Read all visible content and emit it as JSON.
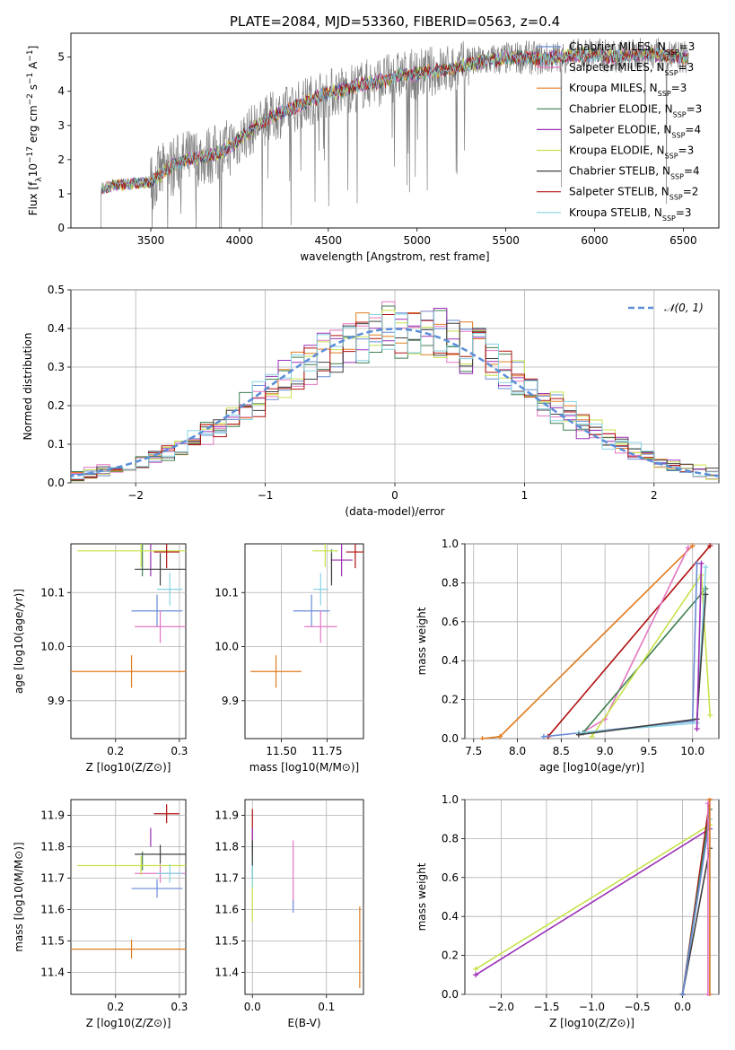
{
  "figure": {
    "title": "PLATE=2084, MJD=53360, FIBERID=0563, z=0.4"
  },
  "colors": {
    "Chabrier MILES": "#6a8bd6",
    "Salpeter MILES": "#e377c2",
    "Kroupa MILES": "#e07b20",
    "Chabrier ELODIE": "#3f7f4f",
    "Salpeter ELODIE": "#9b30b5",
    "Kroupa ELODIE": "#c7e24a",
    "Chabrier STELIB": "#404040",
    "Salpeter STELIB": "#b01010",
    "Kroupa STELIB": "#86d3e3",
    "data": "#808080",
    "normal": "#5b8ed8",
    "grid": "#b0b0b0"
  },
  "chart_data": [
    {
      "id": "spectrum",
      "type": "line",
      "xlabel": "wavelength [Angstrom, rest frame]",
      "ylabel": "Flux [f_λ 10^-17 erg cm^-2 s^-1 A^-1]",
      "xlim": [
        3050,
        6700
      ],
      "ylim": [
        0,
        5.7
      ],
      "xticks": [
        3500,
        4000,
        4500,
        5000,
        5500,
        6000,
        6500
      ],
      "yticks": [
        0,
        1,
        2,
        3,
        4,
        5
      ],
      "grid": false,
      "legend_position": "upper right",
      "legend": [
        {
          "label": "Chabrier MILES, N",
          "sub": "SSP",
          "suffix": "=3"
        },
        {
          "label": "Salpeter MILES, N",
          "sub": "SSP",
          "suffix": "=3"
        },
        {
          "label": "Kroupa MILES, N",
          "sub": "SSP",
          "suffix": "=3"
        },
        {
          "label": "Chabrier ELODIE, N",
          "sub": "SSP",
          "suffix": "=3"
        },
        {
          "label": "Salpeter ELODIE, N",
          "sub": "SSP",
          "suffix": "=4"
        },
        {
          "label": "Kroupa ELODIE, N",
          "sub": "SSP",
          "suffix": "=3"
        },
        {
          "label": "Chabrier STELIB, N",
          "sub": "SSP",
          "suffix": "=4"
        },
        {
          "label": "Salpeter STELIB, N",
          "sub": "SSP",
          "suffix": "=2"
        },
        {
          "label": "Kroupa STELIB, N",
          "sub": "SSP",
          "suffix": "=3"
        }
      ],
      "model_trend": {
        "x": [
          3220,
          3300,
          3400,
          3500,
          3600,
          3700,
          3800,
          3900,
          4000,
          4100,
          4200,
          4300,
          4400,
          4500,
          4600,
          4700,
          4800,
          4900,
          5000,
          5100,
          5200,
          5300,
          5400,
          5500,
          5600,
          5700,
          5800,
          5900,
          6000,
          6100,
          6200,
          6300,
          6400,
          6500
        ],
        "y": [
          1.15,
          1.25,
          1.3,
          1.35,
          1.75,
          2.0,
          2.1,
          2.2,
          2.6,
          3.0,
          3.3,
          3.5,
          3.75,
          3.95,
          4.05,
          4.2,
          4.3,
          4.45,
          4.5,
          4.6,
          4.65,
          4.8,
          4.9,
          4.95,
          5.0,
          4.95,
          5.0,
          5.05,
          5.1,
          5.0,
          5.05,
          5.1,
          5.05,
          5.0
        ]
      },
      "data_range": [
        3220,
        6530
      ]
    },
    {
      "id": "residuals",
      "type": "histogram",
      "xlabel": "(data-model)/error",
      "ylabel": "Normed distribution",
      "xlim": [
        -2.5,
        2.5
      ],
      "ylim": [
        0,
        0.5
      ],
      "xticks": [
        -2,
        -1,
        0,
        1,
        2
      ],
      "yticks": [
        0.0,
        0.1,
        0.2,
        0.3,
        0.4,
        0.5
      ],
      "grid": true,
      "legend_position": "upper right",
      "legend_label": "𝒩(0, 1)",
      "bin_width": 0.1,
      "bin_start": -2.5
    },
    {
      "id": "age-vs-Z",
      "type": "errorbar",
      "xlabel": "Z [log10(Z/Z⊙)]",
      "ylabel": "age [log10(age/yr)]",
      "xlim": [
        0.13,
        0.31
      ],
      "ylim": [
        9.83,
        10.19
      ],
      "xticks": [
        0.2,
        0.3
      ],
      "yticks": [
        9.9,
        10.0,
        10.1
      ],
      "grid": true,
      "points": [
        {
          "model": "Chabrier MILES",
          "x": 0.265,
          "xerr": 0.04,
          "y": 10.066
        },
        {
          "model": "Salpeter MILES",
          "x": 0.27,
          "xerr": 0.04,
          "y": 10.037
        },
        {
          "model": "Kroupa MILES",
          "x": 0.225,
          "xerr": 0.1,
          "y": 9.954
        },
        {
          "model": "Chabrier ELODIE",
          "x": 0.242,
          "xerr": 0.0,
          "y": 10.16
        },
        {
          "model": "Salpeter ELODIE",
          "x": 0.255,
          "xerr": 0.0,
          "y": 10.16
        },
        {
          "model": "Kroupa ELODIE",
          "x": 0.24,
          "xerr": 0.1,
          "y": 10.177
        },
        {
          "model": "Chabrier STELIB",
          "x": 0.27,
          "xerr": 0.04,
          "y": 10.143
        },
        {
          "model": "Salpeter STELIB",
          "x": 0.28,
          "xerr": 0.02,
          "y": 10.175
        },
        {
          "model": "Kroupa STELIB",
          "x": 0.285,
          "xerr": 0.02,
          "y": 10.106
        }
      ]
    },
    {
      "id": "age-vs-mass",
      "type": "errorbar",
      "xlabel": "mass [log10(M/M⊙)]",
      "ylabel": "",
      "xlim": [
        11.3,
        11.95
      ],
      "ylim": [
        9.83,
        10.19
      ],
      "xticks": [
        11.5,
        11.75
      ],
      "yticks": [
        9.9,
        10.0,
        10.1
      ],
      "grid": true,
      "points": [
        {
          "model": "Chabrier MILES",
          "x": 11.665,
          "xerr": 0.1,
          "y": 10.066
        },
        {
          "model": "Salpeter MILES",
          "x": 11.715,
          "xerr": 0.09,
          "y": 10.037
        },
        {
          "model": "Kroupa MILES",
          "x": 11.47,
          "xerr": 0.14,
          "y": 9.954
        },
        {
          "model": "Chabrier ELODIE",
          "x": 11.775,
          "xerr": 0.0,
          "y": 10.15
        },
        {
          "model": "Salpeter ELODIE",
          "x": 11.83,
          "xerr": 0.06,
          "y": 10.16
        },
        {
          "model": "Kroupa ELODIE",
          "x": 11.74,
          "xerr": 0.07,
          "y": 10.177
        },
        {
          "model": "Chabrier STELIB",
          "x": 11.775,
          "xerr": 0.0,
          "y": 10.143
        },
        {
          "model": "Salpeter STELIB",
          "x": 11.905,
          "xerr": 0.05,
          "y": 10.175
        },
        {
          "model": "Kroupa STELIB",
          "x": 11.715,
          "xerr": 0.04,
          "y": 10.106
        }
      ]
    },
    {
      "id": "massweight-vs-age",
      "type": "line",
      "xlabel": "age [log10(age/yr)]",
      "ylabel": "mass weight",
      "xlim": [
        7.4,
        10.3
      ],
      "ylim": [
        0,
        1.0
      ],
      "xticks": [
        7.5,
        8.0,
        8.5,
        9.0,
        9.5,
        10.0
      ],
      "yticks": [
        0.0,
        0.2,
        0.4,
        0.6,
        0.8,
        1.0
      ],
      "grid": true,
      "series": [
        {
          "model": "Kroupa MILES",
          "x": [
            7.6,
            7.8,
            10.0
          ],
          "y": [
            0.0,
            0.01,
            0.99
          ]
        },
        {
          "model": "Salpeter STELIB",
          "x": [
            8.35,
            10.2
          ],
          "y": [
            0.01,
            0.99
          ]
        },
        {
          "model": "Salpeter MILES",
          "x": [
            8.7,
            9.0,
            9.95
          ],
          "y": [
            0.02,
            0.1,
            0.98
          ]
        },
        {
          "model": "Chabrier ELODIE",
          "x": [
            8.75,
            10.15
          ],
          "y": [
            0.03,
            0.77
          ]
        },
        {
          "model": "Kroupa ELODIE",
          "x": [
            8.85,
            10.1,
            10.2
          ],
          "y": [
            0.01,
            0.84,
            0.12
          ]
        },
        {
          "model": "Chabrier MILES",
          "x": [
            8.3,
            10.0,
            10.05
          ],
          "y": [
            0.01,
            0.09,
            0.9
          ]
        },
        {
          "model": "Kroupa STELIB",
          "x": [
            8.7,
            10.05,
            10.15
          ],
          "y": [
            0.03,
            0.08,
            0.88
          ]
        },
        {
          "model": "Chabrier STELIB",
          "x": [
            8.7,
            10.05,
            10.15
          ],
          "y": [
            0.02,
            0.1,
            0.74
          ]
        },
        {
          "model": "Salpeter ELODIE",
          "x": [
            10.05,
            10.1
          ],
          "y": [
            0.05,
            0.9
          ]
        }
      ]
    },
    {
      "id": "mass-vs-Z",
      "type": "errorbar",
      "xlabel": "Z [log10(Z/Z⊙)]",
      "ylabel": "mass [log10(M/M⊙)]",
      "xlim": [
        0.13,
        0.31
      ],
      "ylim": [
        11.33,
        11.95
      ],
      "xticks": [
        0.2,
        0.3
      ],
      "yticks": [
        11.4,
        11.5,
        11.6,
        11.7,
        11.8,
        11.9
      ],
      "grid": true,
      "points": [
        {
          "model": "Chabrier MILES",
          "x": 0.265,
          "xerr": 0.04,
          "y": 11.667
        },
        {
          "model": "Salpeter MILES",
          "x": 0.27,
          "xerr": 0.04,
          "y": 11.715
        },
        {
          "model": "Kroupa MILES",
          "x": 0.225,
          "xerr": 0.1,
          "y": 11.474
        },
        {
          "model": "Chabrier ELODIE",
          "x": 0.242,
          "xerr": 0.0,
          "y": 11.755
        },
        {
          "model": "Salpeter ELODIE",
          "x": 0.255,
          "xerr": 0.0,
          "y": 11.83
        },
        {
          "model": "Kroupa ELODIE",
          "x": 0.24,
          "xerr": 0.1,
          "y": 11.74
        },
        {
          "model": "Chabrier STELIB",
          "x": 0.27,
          "xerr": 0.04,
          "y": 11.776
        },
        {
          "model": "Salpeter STELIB",
          "x": 0.28,
          "xerr": 0.02,
          "y": 11.905
        },
        {
          "model": "Kroupa STELIB",
          "x": 0.285,
          "xerr": 0.02,
          "y": 11.715
        }
      ]
    },
    {
      "id": "mass-vs-EBV",
      "type": "errorbar",
      "xlabel": "E(B-V)",
      "ylabel": "",
      "xlim": [
        -0.01,
        0.15
      ],
      "ylim": [
        11.33,
        11.95
      ],
      "xticks": [
        0.0,
        0.1
      ],
      "yticks": [
        11.4,
        11.5,
        11.6,
        11.7,
        11.8,
        11.9
      ],
      "grid": true,
      "points": [
        {
          "model": "Kroupa MILES",
          "x": 0.145,
          "y": 11.48,
          "yerr": 0.13
        },
        {
          "model": "Salpeter MILES",
          "x": 0.055,
          "y": 11.72,
          "yerr": 0.1
        },
        {
          "model": "Chabrier MILES",
          "x": 0.055,
          "y": 11.61,
          "yerr": 0.02
        },
        {
          "model": "Salpeter STELIB",
          "x": 0.0,
          "y": 11.86,
          "yerr": 0.06
        },
        {
          "model": "Salpeter ELODIE",
          "x": 0.0,
          "y": 11.82,
          "yerr": 0.04
        },
        {
          "model": "Chabrier ELODIE",
          "x": 0.0,
          "y": 11.76,
          "yerr": 0.06
        },
        {
          "model": "Kroupa ELODIE",
          "x": 0.0,
          "y": 11.63,
          "yerr": 0.07
        },
        {
          "model": "Kroupa STELIB",
          "x": 0.0,
          "y": 11.72,
          "yerr": 0.05
        },
        {
          "model": "Chabrier STELIB",
          "x": 0.0,
          "y": 11.78,
          "yerr": 0.04
        }
      ]
    },
    {
      "id": "massweight-vs-Z",
      "type": "line",
      "xlabel": "Z [log10(Z/Z⊙)]",
      "ylabel": "mass weight",
      "xlim": [
        -2.4,
        0.4
      ],
      "ylim": [
        0,
        1.0
      ],
      "xticks": [
        -2.0,
        -1.5,
        -1.0,
        -0.5,
        0.0
      ],
      "yticks": [
        0.0,
        0.2,
        0.4,
        0.6,
        0.8,
        1.0
      ],
      "grid": true,
      "series": [
        {
          "model": "Kroupa ELODIE",
          "x": [
            -2.28,
            0.3
          ],
          "y": [
            0.13,
            0.87
          ]
        },
        {
          "model": "Salpeter ELODIE",
          "x": [
            -2.28,
            0.3
          ],
          "y": [
            0.1,
            0.85
          ]
        },
        {
          "model": "Salpeter STELIB",
          "x": [
            0.0,
            0.3
          ],
          "y": [
            0.0,
            1.0
          ]
        },
        {
          "model": "Chabrier ELODIE",
          "x": [
            0.0,
            0.3
          ],
          "y": [
            0.0,
            0.95
          ]
        },
        {
          "model": "Chabrier STELIB",
          "x": [
            0.0,
            0.3
          ],
          "y": [
            0.0,
            0.75
          ]
        },
        {
          "model": "Chabrier MILES",
          "x": [
            0.0,
            0.3
          ],
          "y": [
            0.0,
            0.9
          ]
        },
        {
          "model": "Kroupa STELIB",
          "x": [
            0.3,
            0.3
          ],
          "y": [
            0.0,
            0.9
          ]
        },
        {
          "model": "Kroupa MILES",
          "x": [
            0.3,
            0.3
          ],
          "y": [
            0.0,
            1.0
          ]
        },
        {
          "model": "Salpeter MILES",
          "x": [
            0.28,
            0.28
          ],
          "y": [
            0.0,
            0.98
          ]
        }
      ]
    }
  ]
}
